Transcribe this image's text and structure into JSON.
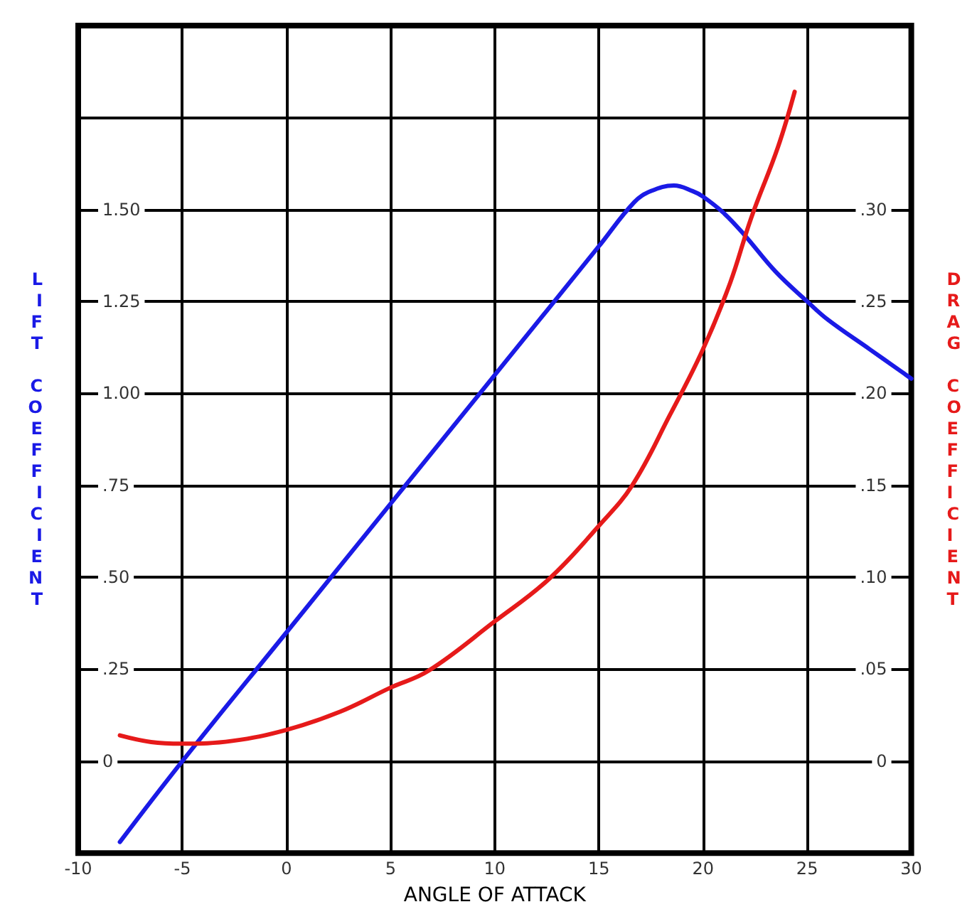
{
  "chart_data": {
    "type": "line",
    "xlabel": "ANGLE OF ATTACK",
    "ylabel": "LIFT COEFFICIENT",
    "y2label": "DRAG COEFFICIENT",
    "xlim": [
      -10,
      30
    ],
    "xticks": [
      -10,
      -5,
      0,
      5,
      10,
      15,
      20,
      25,
      30
    ],
    "ylim": [
      -0.25,
      2.0
    ],
    "yticks": [
      {
        "value": -0.25,
        "label": null
      },
      0,
      {
        "value": 0.25,
        "label": ".25"
      },
      {
        "value": 0.5,
        "label": ".50"
      },
      {
        "value": 0.75,
        "label": ".75"
      },
      {
        "value": 1.0,
        "label": "1.00"
      },
      {
        "value": 1.25,
        "label": "1.25"
      },
      {
        "value": 1.5,
        "label": "1.50"
      },
      {
        "value": 1.75,
        "label": null
      },
      {
        "value": 2.0,
        "label": null
      }
    ],
    "y2lim": [
      -0.05,
      0.4
    ],
    "y2ticks": [
      {
        "value": -0.05,
        "label": null
      },
      0,
      {
        "value": 0.05,
        "label": ".05"
      },
      {
        "value": 0.1,
        "label": ".10"
      },
      {
        "value": 0.15,
        "label": ".15"
      },
      {
        "value": 0.2,
        "label": ".20"
      },
      {
        "value": 0.25,
        "label": ".25"
      },
      {
        "value": 0.3,
        "label": ".30"
      },
      {
        "value": 0.35,
        "label": null
      },
      {
        "value": 0.4,
        "label": null
      }
    ],
    "grid": true,
    "marker": "none",
    "line_style": "solid",
    "series": [
      {
        "color": "#1a1ae6",
        "x": [
          -8,
          -5,
          0,
          5,
          10,
          15,
          16.7,
          17.5,
          18.6,
          19.5,
          20,
          21,
          22,
          23.5,
          25,
          26,
          28,
          30
        ],
        "values": [
          -0.22,
          0.0,
          0.35,
          0.7,
          1.05,
          1.4,
          1.52,
          1.55,
          1.565,
          1.55,
          1.535,
          1.49,
          1.43,
          1.33,
          1.25,
          1.2,
          1.12,
          1.04
        ]
      },
      {
        "color": "#e61a1a",
        "axis": "y2",
        "x": [
          -8,
          -6.5,
          -5,
          -2.6,
          0,
          2.6,
          5,
          6.8,
          10,
          12.6,
          15,
          16.6,
          18.4,
          20,
          21.3,
          22.3,
          23.6,
          24.4
        ],
        "values": [
          0.014,
          0.0104,
          0.0095,
          0.011,
          0.017,
          0.027,
          0.04,
          0.049,
          0.076,
          0.099,
          0.128,
          0.15,
          0.188,
          0.224,
          0.26,
          0.295,
          0.334,
          0.364
        ]
      }
    ]
  }
}
